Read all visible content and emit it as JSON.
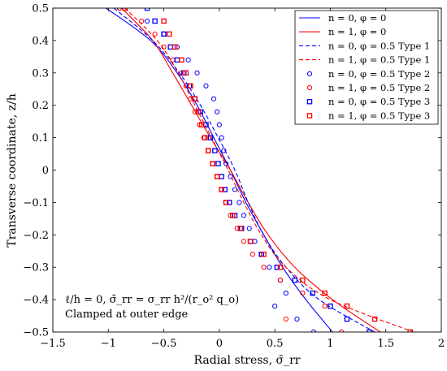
{
  "chart_data": {
    "type": "line",
    "xlabel": "Radial stress, σ̄_rr",
    "ylabel": "Transverse coordinate, z/h",
    "xlim": [
      -1.5,
      2
    ],
    "ylim": [
      -0.5,
      0.5
    ],
    "x_ticks": [
      -1.5,
      -1,
      -0.5,
      0,
      0.5,
      1,
      1.5,
      2
    ],
    "y_ticks": [
      -0.5,
      -0.4,
      -0.3,
      -0.2,
      -0.1,
      0,
      0.1,
      0.2,
      0.3,
      0.4,
      0.5
    ],
    "x_tick_labels": [
      "−1.5",
      "−1",
      "−0.5",
      "0",
      "0.5",
      "1",
      "1.5",
      "2"
    ],
    "y_tick_labels": [
      "−0.5",
      "−0.4",
      "−0.3",
      "−0.2",
      "−0.1",
      "0",
      "0.1",
      "0.2",
      "0.3",
      "0.4",
      "0.5"
    ],
    "grid": false,
    "legend_position": "top-right",
    "annotation": {
      "line1": "ℓ/h = 0, σ̄_rr = σ_rr h²/(r_o² q_o)",
      "line2": "Clamped at outer edge"
    },
    "series": [
      {
        "name": "n = 0, φ = 0",
        "color": "#0000ff",
        "style": "solid",
        "marker": "none",
        "points": [
          [
            -1.02,
            0.5
          ],
          [
            -0.62,
            0.4
          ],
          [
            -0.38,
            0.3
          ],
          [
            -0.2,
            0.2
          ],
          [
            -0.05,
            0.1
          ],
          [
            0.1,
            0.0
          ],
          [
            0.24,
            -0.1
          ],
          [
            0.4,
            -0.2
          ],
          [
            0.57,
            -0.3
          ],
          [
            0.78,
            -0.4
          ],
          [
            1.02,
            -0.5
          ]
        ]
      },
      {
        "name": "n = 1, φ = 0",
        "color": "#ff0000",
        "style": "solid",
        "marker": "none",
        "points": [
          [
            -0.88,
            0.5
          ],
          [
            -0.6,
            0.4
          ],
          [
            -0.42,
            0.3
          ],
          [
            -0.25,
            0.2
          ],
          [
            -0.08,
            0.1
          ],
          [
            0.1,
            0.0
          ],
          [
            0.26,
            -0.1
          ],
          [
            0.44,
            -0.2
          ],
          [
            0.68,
            -0.3
          ],
          [
            1.02,
            -0.4
          ],
          [
            1.45,
            -0.5
          ]
        ]
      },
      {
        "name": "n = 0, φ = 0.5 Type 1",
        "color": "#0000ff",
        "style": "dashed",
        "marker": "none",
        "points": [
          [
            -0.95,
            0.5
          ],
          [
            -0.6,
            0.4
          ],
          [
            -0.36,
            0.3
          ],
          [
            -0.17,
            0.2
          ],
          [
            -0.01,
            0.1
          ],
          [
            0.14,
            0.0
          ],
          [
            0.26,
            -0.1
          ],
          [
            0.4,
            -0.2
          ],
          [
            0.6,
            -0.3
          ],
          [
            0.9,
            -0.4
          ],
          [
            1.4,
            -0.5
          ]
        ]
      },
      {
        "name": "n = 1, φ = 0.5 Type 1",
        "color": "#ff0000",
        "style": "dashed",
        "marker": "none",
        "points": [
          [
            -0.85,
            0.5
          ],
          [
            -0.56,
            0.4
          ],
          [
            -0.37,
            0.3
          ],
          [
            -0.22,
            0.2
          ],
          [
            -0.07,
            0.1
          ],
          [
            0.08,
            0.0
          ],
          [
            0.22,
            -0.1
          ],
          [
            0.38,
            -0.2
          ],
          [
            0.6,
            -0.3
          ],
          [
            1.0,
            -0.4
          ],
          [
            1.75,
            -0.5
          ]
        ]
      },
      {
        "name": "n = 0, φ = 0.5 Type 2",
        "color": "#0000ff",
        "style": "none",
        "marker": "circle",
        "points": [
          [
            -0.9,
            0.5
          ],
          [
            -0.65,
            0.46
          ],
          [
            -0.5,
            0.42
          ],
          [
            -0.38,
            0.38
          ],
          [
            -0.28,
            0.34
          ],
          [
            -0.2,
            0.3
          ],
          [
            -0.12,
            0.26
          ],
          [
            -0.05,
            0.22
          ],
          [
            -0.02,
            0.18
          ],
          [
            0.0,
            0.14
          ],
          [
            0.02,
            0.1
          ],
          [
            0.04,
            0.06
          ],
          [
            0.06,
            0.02
          ],
          [
            0.1,
            -0.02
          ],
          [
            0.14,
            -0.06
          ],
          [
            0.18,
            -0.1
          ],
          [
            0.22,
            -0.14
          ],
          [
            0.27,
            -0.18
          ],
          [
            0.32,
            -0.22
          ],
          [
            0.38,
            -0.26
          ],
          [
            0.45,
            -0.3
          ],
          [
            0.55,
            -0.34
          ],
          [
            0.6,
            -0.38
          ],
          [
            0.5,
            -0.42
          ],
          [
            0.7,
            -0.46
          ],
          [
            0.85,
            -0.5
          ]
        ]
      },
      {
        "name": "n = 1, φ = 0.5 Type 2",
        "color": "#ff0000",
        "style": "none",
        "marker": "circle",
        "points": [
          [
            -0.9,
            0.5
          ],
          [
            -0.7,
            0.46
          ],
          [
            -0.58,
            0.42
          ],
          [
            -0.5,
            0.38
          ],
          [
            -0.42,
            0.34
          ],
          [
            -0.35,
            0.3
          ],
          [
            -0.3,
            0.26
          ],
          [
            -0.26,
            0.22
          ],
          [
            -0.22,
            0.18
          ],
          [
            -0.18,
            0.14
          ],
          [
            -0.14,
            0.1
          ],
          [
            -0.1,
            0.06
          ],
          [
            -0.06,
            0.02
          ],
          [
            -0.02,
            -0.02
          ],
          [
            0.02,
            -0.06
          ],
          [
            0.06,
            -0.1
          ],
          [
            0.1,
            -0.14
          ],
          [
            0.16,
            -0.18
          ],
          [
            0.22,
            -0.22
          ],
          [
            0.3,
            -0.26
          ],
          [
            0.4,
            -0.3
          ],
          [
            0.55,
            -0.34
          ],
          [
            0.75,
            -0.38
          ],
          [
            0.95,
            -0.42
          ],
          [
            0.6,
            -0.46
          ],
          [
            1.1,
            -0.5
          ]
        ]
      },
      {
        "name": "n = 0, φ = 0.5 Type 3",
        "color": "#0000ff",
        "style": "none",
        "marker": "square",
        "points": [
          [
            -0.65,
            0.5
          ],
          [
            -0.58,
            0.46
          ],
          [
            -0.5,
            0.42
          ],
          [
            -0.44,
            0.38
          ],
          [
            -0.38,
            0.34
          ],
          [
            -0.32,
            0.3
          ],
          [
            -0.27,
            0.26
          ],
          [
            -0.22,
            0.22
          ],
          [
            -0.17,
            0.18
          ],
          [
            -0.12,
            0.14
          ],
          [
            -0.08,
            0.1
          ],
          [
            -0.04,
            0.06
          ],
          [
            -0.01,
            0.02
          ],
          [
            0.02,
            -0.02
          ],
          [
            0.05,
            -0.06
          ],
          [
            0.09,
            -0.1
          ],
          [
            0.14,
            -0.14
          ],
          [
            0.2,
            -0.18
          ],
          [
            0.28,
            -0.22
          ],
          [
            0.38,
            -0.26
          ],
          [
            0.52,
            -0.3
          ],
          [
            0.68,
            -0.34
          ],
          [
            0.84,
            -0.38
          ],
          [
            1.0,
            -0.42
          ],
          [
            1.15,
            -0.46
          ],
          [
            1.35,
            -0.5
          ]
        ]
      },
      {
        "name": "n = 1, φ = 0.5 Type 3",
        "color": "#ff0000",
        "style": "none",
        "marker": "square",
        "points": [
          [
            -0.85,
            0.5
          ],
          [
            -0.5,
            0.46
          ],
          [
            -0.45,
            0.42
          ],
          [
            -0.4,
            0.38
          ],
          [
            -0.34,
            0.34
          ],
          [
            -0.3,
            0.3
          ],
          [
            -0.26,
            0.26
          ],
          [
            -0.22,
            0.22
          ],
          [
            -0.19,
            0.18
          ],
          [
            -0.16,
            0.14
          ],
          [
            -0.13,
            0.1
          ],
          [
            -0.1,
            0.06
          ],
          [
            -0.06,
            0.02
          ],
          [
            -0.02,
            -0.02
          ],
          [
            0.02,
            -0.06
          ],
          [
            0.06,
            -0.1
          ],
          [
            0.12,
            -0.14
          ],
          [
            0.19,
            -0.18
          ],
          [
            0.28,
            -0.22
          ],
          [
            0.4,
            -0.26
          ],
          [
            0.55,
            -0.3
          ],
          [
            0.75,
            -0.34
          ],
          [
            0.95,
            -0.38
          ],
          [
            1.15,
            -0.42
          ],
          [
            1.4,
            -0.46
          ],
          [
            1.72,
            -0.5
          ]
        ]
      }
    ]
  }
}
